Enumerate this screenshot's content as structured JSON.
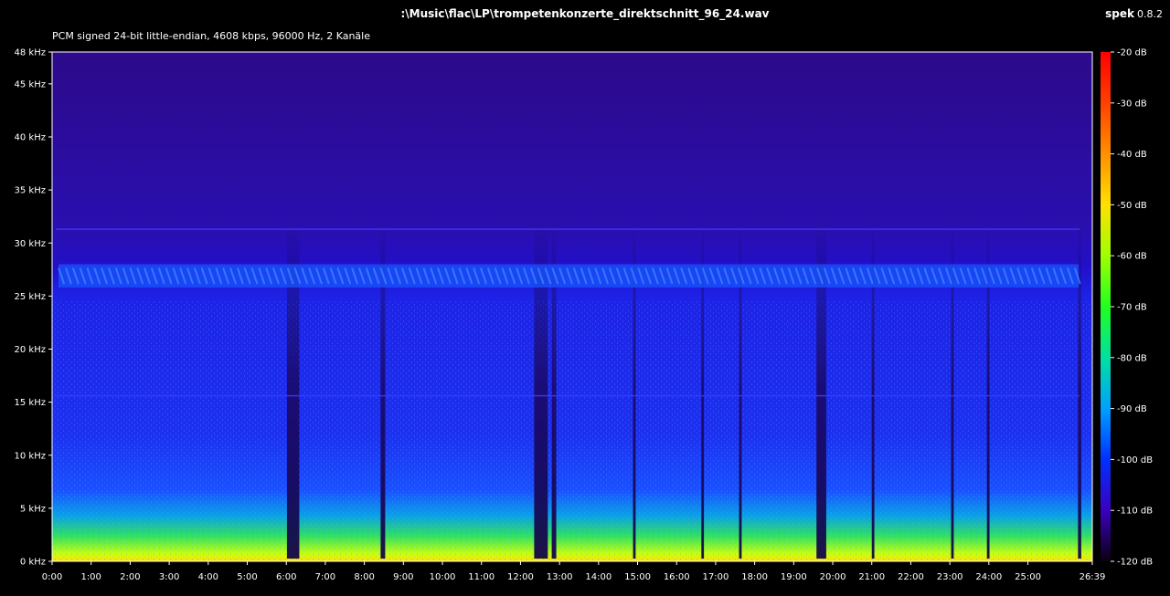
{
  "window": {
    "file_path": ":\\Music\\flac\\LP\\trompetenkonzerte_direktschnitt_96_24.wav",
    "app_name": "spek",
    "app_version": "0.8.2",
    "stream_info": "PCM signed 24-bit little-endian, 4608 kbps, 96000 Hz, 2 Kanäle"
  },
  "spectrogram": {
    "frequency_axis": {
      "unit": "kHz",
      "max": 48,
      "ticks": [
        {
          "value": 0,
          "label": "0 kHz"
        },
        {
          "value": 5,
          "label": "5 kHz"
        },
        {
          "value": 10,
          "label": "10 kHz"
        },
        {
          "value": 15,
          "label": "15 kHz"
        },
        {
          "value": 20,
          "label": "20 kHz"
        },
        {
          "value": 25,
          "label": "25 kHz"
        },
        {
          "value": 30,
          "label": "30 kHz"
        },
        {
          "value": 35,
          "label": "35 kHz"
        },
        {
          "value": 40,
          "label": "40 kHz"
        },
        {
          "value": 45,
          "label": "45 kHz"
        },
        {
          "value": 48,
          "label": "48 kHz"
        }
      ]
    },
    "time_axis": {
      "duration_seconds": 1599,
      "ticks": [
        {
          "value": 0,
          "label": "0:00"
        },
        {
          "value": 60,
          "label": "1:00"
        },
        {
          "value": 120,
          "label": "2:00"
        },
        {
          "value": 180,
          "label": "3:00"
        },
        {
          "value": 240,
          "label": "4:00"
        },
        {
          "value": 300,
          "label": "5:00"
        },
        {
          "value": 360,
          "label": "6:00"
        },
        {
          "value": 420,
          "label": "7:00"
        },
        {
          "value": 480,
          "label": "8:00"
        },
        {
          "value": 540,
          "label": "9:00"
        },
        {
          "value": 600,
          "label": "10:00"
        },
        {
          "value": 660,
          "label": "11:00"
        },
        {
          "value": 720,
          "label": "12:00"
        },
        {
          "value": 780,
          "label": "13:00"
        },
        {
          "value": 840,
          "label": "14:00"
        },
        {
          "value": 900,
          "label": "15:00"
        },
        {
          "value": 960,
          "label": "16:00"
        },
        {
          "value": 1020,
          "label": "17:00"
        },
        {
          "value": 1080,
          "label": "18:00"
        },
        {
          "value": 1140,
          "label": "19:00"
        },
        {
          "value": 1200,
          "label": "20:00"
        },
        {
          "value": 1260,
          "label": "21:00"
        },
        {
          "value": 1320,
          "label": "22:00"
        },
        {
          "value": 1380,
          "label": "23:00"
        },
        {
          "value": 1440,
          "label": "24:00"
        },
        {
          "value": 1500,
          "label": "25:00"
        },
        {
          "value": 1599,
          "label": "26:39"
        }
      ]
    },
    "level_scale": {
      "unit": "dB",
      "min": -120,
      "max": -20,
      "ticks": [
        {
          "value": -20,
          "label": "-20 dB"
        },
        {
          "value": -30,
          "label": "-30 dB"
        },
        {
          "value": -40,
          "label": "-40 dB"
        },
        {
          "value": -50,
          "label": "-50 dB"
        },
        {
          "value": -60,
          "label": "-60 dB"
        },
        {
          "value": -70,
          "label": "-70 dB"
        },
        {
          "value": -80,
          "label": "-80 dB"
        },
        {
          "value": -90,
          "label": "-90 dB"
        },
        {
          "value": -100,
          "label": "-100 dB"
        },
        {
          "value": -110,
          "label": "-110 dB"
        },
        {
          "value": -120,
          "label": "-120 dB"
        }
      ],
      "colors": [
        "#ff0000",
        "#ff6a00",
        "#ffd000",
        "#e0ff00",
        "#40ff00",
        "#00e070",
        "#00b0e0",
        "#0050ff",
        "#1a00ff",
        "#3a00a0",
        "#12002a"
      ]
    },
    "silent_gaps_seconds": [
      [
        361,
        380
      ],
      [
        505,
        512
      ],
      [
        741,
        762
      ],
      [
        768,
        775
      ],
      [
        893,
        897
      ],
      [
        998,
        1002
      ],
      [
        1056,
        1060
      ],
      [
        1175,
        1190
      ],
      [
        1260,
        1264
      ],
      [
        1382,
        1386
      ],
      [
        1437,
        1441
      ],
      [
        1577,
        1582
      ]
    ],
    "tone_lines_khz": [
      31.3,
      15.6
    ],
    "ultrasonic_band_khz": [
      25.8,
      28.0
    ]
  }
}
